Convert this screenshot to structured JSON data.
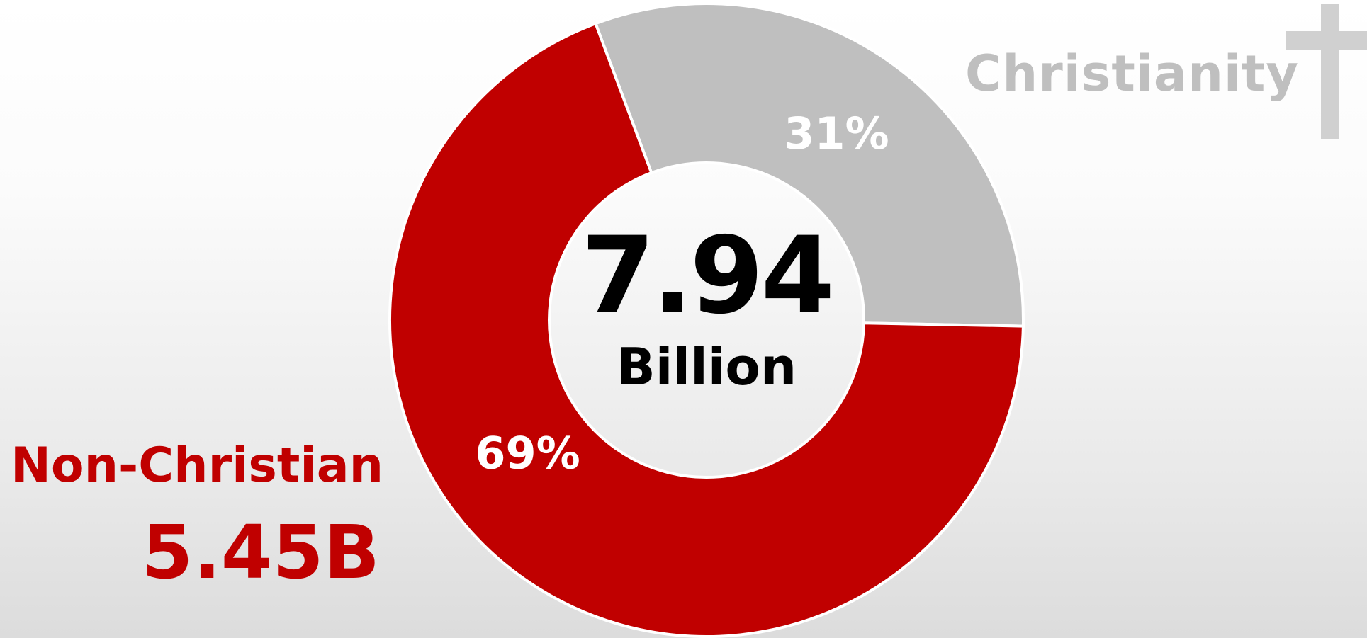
{
  "chart_data": {
    "type": "pie",
    "variant": "donut",
    "center_label": {
      "value": "7.94",
      "unit": "Billion"
    },
    "series": [
      {
        "name": "Christianity",
        "value": 31,
        "label": "31%",
        "color": "#bfbfbf",
        "label_color": "#ffffff"
      },
      {
        "name": "Non-Christian",
        "value": 69,
        "label": "69%",
        "color": "#c00000",
        "label_color": "#ffffff",
        "total_label": "5.45B"
      }
    ]
  },
  "legend": {
    "christianity": {
      "label": "Christianity",
      "icon": "cross-icon",
      "color": "#bfbfbf"
    },
    "non_christian": {
      "label": "Non-Christian",
      "value": "5.45B",
      "color": "#c00000"
    }
  }
}
